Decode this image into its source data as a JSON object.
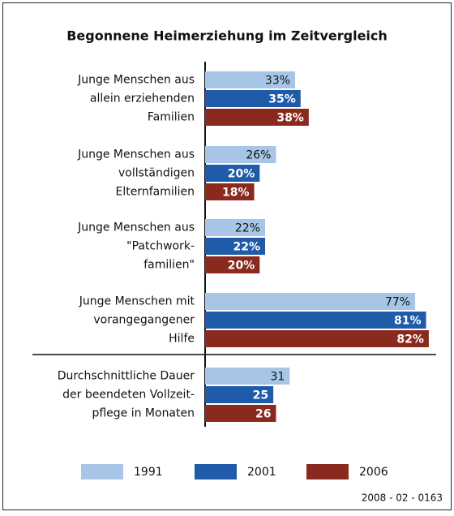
{
  "chart_data": {
    "type": "barh",
    "title": "Begonnene Heimerziehung im Zeitvergleich",
    "categories": [
      [
        "Junge Menschen aus",
        "allein erziehenden",
        "Familien"
      ],
      [
        "Junge Menschen aus",
        "vollständigen",
        "Elternfamilien"
      ],
      [
        "Junge Menschen aus",
        "\"Patchwork-",
        "familien\""
      ],
      [
        "Junge Menschen mit",
        "vorangegangener",
        "Hilfe"
      ],
      [
        "Durchschnittliche Dauer",
        "der beendeten Vollzeit-",
        "pflege in Monaten"
      ]
    ],
    "series": [
      {
        "name": "1991",
        "color": "#a7c5e6",
        "values": [
          33,
          26,
          22,
          77,
          31
        ],
        "value_labels": [
          "33%",
          "26%",
          "22%",
          "77%",
          "31"
        ]
      },
      {
        "name": "2001",
        "color": "#1f5ba8",
        "values": [
          35,
          20,
          22,
          81,
          25
        ],
        "value_labels": [
          "35%",
          "20%",
          "22%",
          "81%",
          "25"
        ]
      },
      {
        "name": "2006",
        "color": "#8a2a1f",
        "values": [
          38,
          18,
          20,
          82,
          26
        ],
        "value_labels": [
          "38%",
          "18%",
          "20%",
          "82%",
          "26"
        ]
      }
    ],
    "xlim": [
      0,
      85
    ],
    "legend": "bottom",
    "note": "2008 - 02 - 0163"
  }
}
